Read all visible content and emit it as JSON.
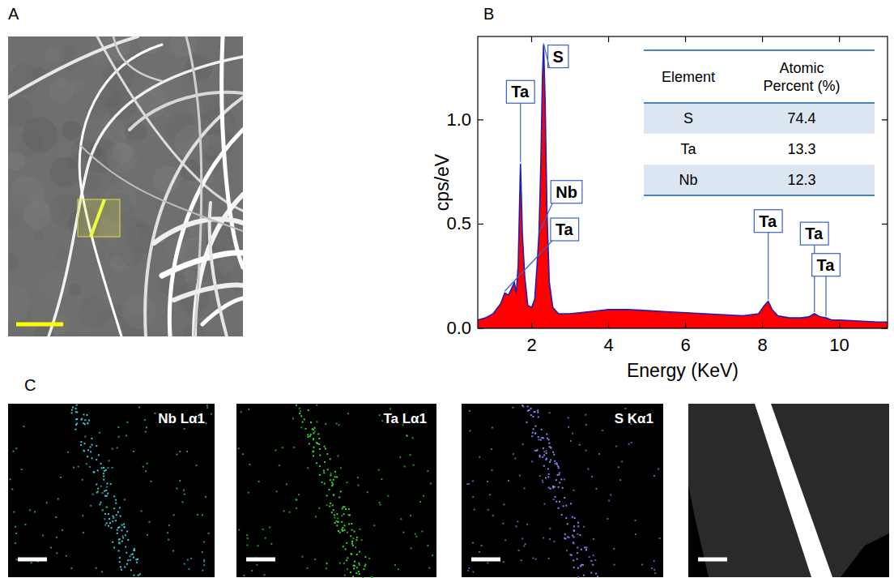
{
  "panel_labels": [
    "A",
    "B",
    "C"
  ],
  "chart_data": {
    "type": "area",
    "x_label": "Energy (KeV)",
    "y_label": "cps/eV",
    "color": "#ff0000",
    "x": [
      0.6,
      0.8,
      1.0,
      1.2,
      1.3,
      1.4,
      1.5,
      1.55,
      1.6,
      1.65,
      1.71,
      1.76,
      1.82,
      1.9,
      2.0,
      2.08,
      2.14,
      2.19,
      2.24,
      2.28,
      2.31,
      2.35,
      2.4,
      2.46,
      2.55,
      2.7,
      3.0,
      3.5,
      4.0,
      4.5,
      5.0,
      5.5,
      6.0,
      6.5,
      7.0,
      7.5,
      7.9,
      8.05,
      8.15,
      8.25,
      8.4,
      8.7,
      9.0,
      9.2,
      9.35,
      9.5,
      9.65,
      9.8,
      10.0,
      10.5,
      11.0,
      11.25
    ],
    "values": [
      0.04,
      0.05,
      0.07,
      0.12,
      0.17,
      0.16,
      0.2,
      0.22,
      0.17,
      0.3,
      0.79,
      0.45,
      0.25,
      0.11,
      0.1,
      0.14,
      0.3,
      0.45,
      0.8,
      1.2,
      1.36,
      1.1,
      0.55,
      0.22,
      0.1,
      0.07,
      0.07,
      0.08,
      0.09,
      0.09,
      0.085,
      0.08,
      0.075,
      0.07,
      0.065,
      0.06,
      0.07,
      0.11,
      0.13,
      0.09,
      0.06,
      0.05,
      0.05,
      0.055,
      0.07,
      0.055,
      0.05,
      0.04,
      0.04,
      0.035,
      0.03,
      0.03
    ],
    "xlim": [
      0.6,
      11.25
    ],
    "ylim": [
      0,
      1.4
    ],
    "xticks": [
      2,
      4,
      6,
      8,
      10
    ],
    "yticks": [
      {
        "value": 0,
        "label": "0.0"
      },
      {
        "value": 0.5,
        "label": "0.5"
      },
      {
        "value": 1,
        "label": "1.0"
      }
    ],
    "annotations": [
      {
        "text": "Ta",
        "x": 1.3,
        "y": 0.42
      },
      {
        "text": "Ta",
        "x": 1.71,
        "y": 1.08
      },
      {
        "text": "S",
        "x": 2.31,
        "y": 1.25
      },
      {
        "text": "Nb",
        "x": 2.19,
        "y": 0.6
      },
      {
        "text": "Ta",
        "x": 8.15,
        "y": 0.46
      },
      {
        "text": "Ta",
        "x": 9.35,
        "y": 0.4
      },
      {
        "text": "Ta",
        "x": 9.65,
        "y": 0.25
      }
    ]
  },
  "table": {
    "columns": [
      "Element",
      "Atomic Percent (%)"
    ],
    "rows": [
      [
        "S",
        74.4
      ],
      [
        "Ta",
        13.3
      ],
      [
        "Nb",
        12.3
      ]
    ]
  },
  "maps": [
    {
      "label": "Nb Lα1",
      "color": "#3cc8d2"
    },
    {
      "label": "Ta Lα1",
      "color": "#33d633"
    },
    {
      "label": "S Kα1",
      "color": "#8484f2"
    }
  ]
}
